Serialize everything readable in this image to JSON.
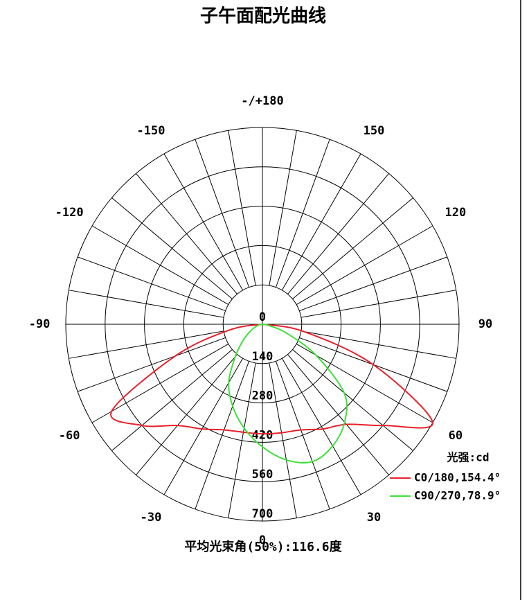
{
  "chart_data": {
    "type": "polar",
    "title": "子午面配光曲线",
    "angles": [
      -90,
      -80,
      -70,
      -60,
      -50,
      -40,
      -30,
      -20,
      -10,
      0,
      10,
      20,
      30,
      40,
      50,
      60,
      70,
      80,
      90
    ],
    "rlim": [
      0,
      700
    ],
    "rticks": [
      0,
      140,
      280,
      420,
      560,
      700
    ],
    "angle_ticks": [
      {
        "value": 180,
        "label": "-/+180"
      },
      -150,
      150,
      -120,
      120,
      -90,
      90,
      -60,
      60,
      -30,
      30,
      0
    ],
    "legend_title": "光强:cd",
    "series": [
      {
        "name": "C0/180,154.4°",
        "color": "#e8202a",
        "values": [
          0,
          120,
          330,
          620,
          560,
          470,
          430,
          400,
          390,
          390,
          392,
          400,
          430,
          465,
          560,
          700,
          420,
          150,
          0
        ]
      },
      {
        "name": "C90/270,78.9°",
        "color": "#3ee03a",
        "values": [
          0,
          10,
          25,
          50,
          90,
          150,
          240,
          310,
          375,
          436,
          490,
          520,
          500,
          455,
          380,
          220,
          90,
          20,
          0
        ]
      }
    ],
    "annotation": "平均光束角(50%):116.6度"
  }
}
